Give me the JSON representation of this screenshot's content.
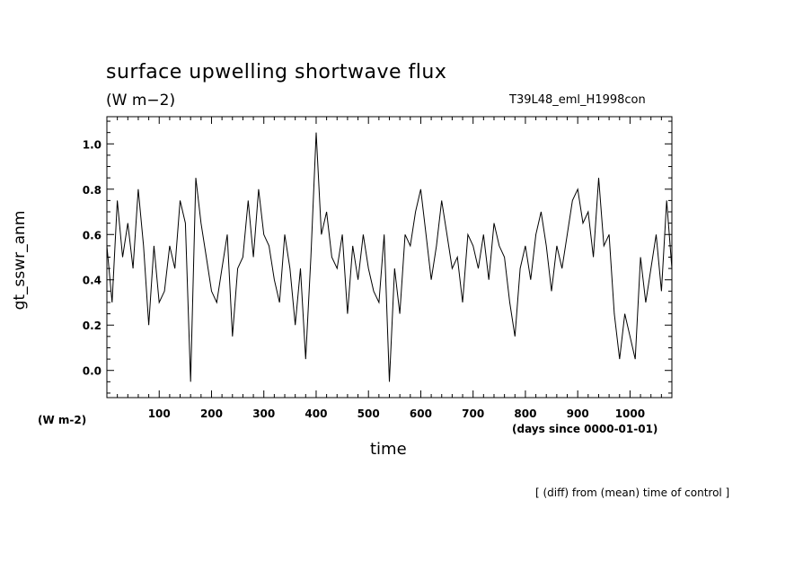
{
  "chart_data": {
    "type": "line",
    "title": "surface upwelling shortwave flux",
    "units": "(W m−2)",
    "run_name": "T39L48_eml_H1998con",
    "ylabel": "gt_sswr_anm",
    "yunits": "(W m-2)",
    "xlabel": "time",
    "xunits": "(days since 0000-01-01)",
    "footnote": "[ (diff) from (mean) time of control ]",
    "xlim": [
      0,
      1080
    ],
    "ylim": [
      -0.12,
      1.12
    ],
    "xticks": [
      100,
      200,
      300,
      400,
      500,
      600,
      700,
      800,
      900,
      1000
    ],
    "xtick_labels": [
      "100",
      "200",
      "300",
      "400",
      "500",
      "600",
      "700",
      "800",
      "900",
      "1000"
    ],
    "yticks": [
      0.0,
      0.2,
      0.4,
      0.6,
      0.8,
      1.0
    ],
    "ytick_labels": [
      "0.0",
      "0.2",
      "0.4",
      "0.6",
      "0.8",
      "1.0"
    ],
    "grid": false,
    "series": [
      {
        "x": [
          0,
          10,
          20,
          30,
          40,
          50,
          60,
          70,
          80,
          90,
          100,
          110,
          120,
          130,
          140,
          150,
          160,
          170,
          180,
          190,
          200,
          210,
          220,
          230,
          240,
          250,
          260,
          270,
          280,
          290,
          300,
          310,
          320,
          330,
          340,
          350,
          360,
          370,
          380,
          390,
          400,
          410,
          420,
          430,
          440,
          450,
          460,
          470,
          480,
          490,
          500,
          510,
          520,
          530,
          540,
          550,
          560,
          570,
          580,
          590,
          600,
          610,
          620,
          630,
          640,
          650,
          660,
          670,
          680,
          690,
          700,
          710,
          720,
          730,
          740,
          750,
          760,
          770,
          780,
          790,
          800,
          810,
          820,
          830,
          840,
          850,
          860,
          870,
          880,
          890,
          900,
          910,
          920,
          930,
          940,
          950,
          960,
          970,
          980,
          990,
          1000,
          1010,
          1020,
          1030,
          1040,
          1050,
          1060,
          1070,
          1080
        ],
        "values": [
          0.55,
          0.3,
          0.75,
          0.5,
          0.65,
          0.45,
          0.8,
          0.55,
          0.2,
          0.55,
          0.3,
          0.35,
          0.55,
          0.45,
          0.75,
          0.65,
          -0.05,
          0.85,
          0.65,
          0.5,
          0.35,
          0.3,
          0.45,
          0.6,
          0.15,
          0.45,
          0.5,
          0.75,
          0.5,
          0.8,
          0.6,
          0.55,
          0.4,
          0.3,
          0.6,
          0.45,
          0.2,
          0.45,
          0.05,
          0.5,
          1.05,
          0.6,
          0.7,
          0.5,
          0.45,
          0.6,
          0.25,
          0.55,
          0.4,
          0.6,
          0.45,
          0.35,
          0.3,
          0.6,
          -0.05,
          0.45,
          0.25,
          0.6,
          0.55,
          0.7,
          0.8,
          0.6,
          0.4,
          0.55,
          0.75,
          0.6,
          0.45,
          0.5,
          0.3,
          0.6,
          0.55,
          0.45,
          0.6,
          0.4,
          0.65,
          0.55,
          0.5,
          0.3,
          0.15,
          0.45,
          0.55,
          0.4,
          0.6,
          0.7,
          0.55,
          0.35,
          0.55,
          0.45,
          0.6,
          0.75,
          0.8,
          0.65,
          0.7,
          0.5,
          0.85,
          0.55,
          0.6,
          0.25,
          0.05,
          0.25,
          0.15,
          0.05,
          0.5,
          0.3,
          0.45,
          0.6,
          0.35,
          0.75,
          0.45
        ]
      }
    ]
  }
}
